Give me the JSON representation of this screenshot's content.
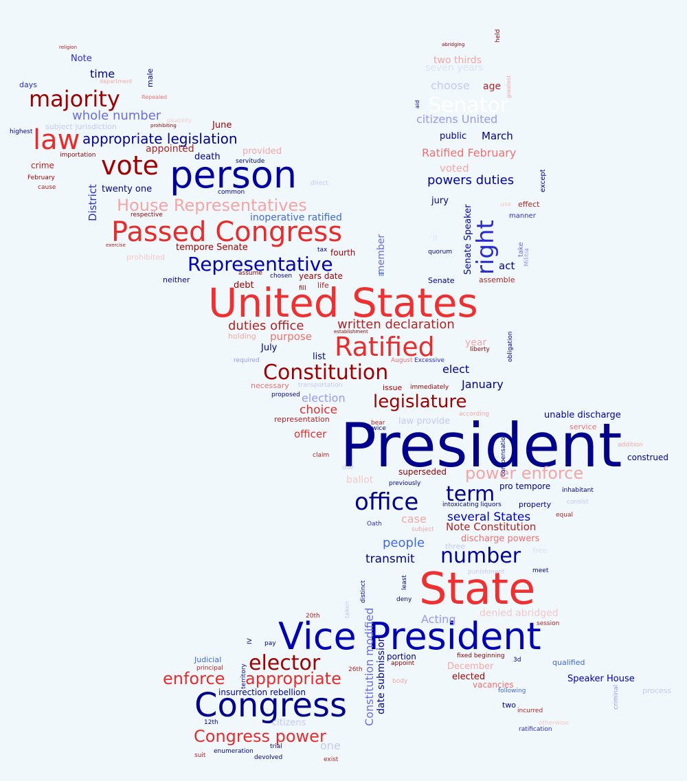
{
  "colors": {
    "background": "#f0f8fc",
    "palette": [
      "#00008b",
      "#0000cd",
      "#4169e1",
      "#9999ee",
      "#c8c8f5",
      "#8b0000",
      "#b22222",
      "#e82c2c",
      "#f07070",
      "#f4a6a6"
    ]
  },
  "words": [
    {
      "text": "President",
      "color": "#00008b"
    },
    {
      "text": "United States",
      "color": "#f03030"
    },
    {
      "text": "State",
      "color": "#f03030"
    },
    {
      "text": "Vice President",
      "color": "#0000b4"
    },
    {
      "text": "person",
      "color": "#0000a0"
    },
    {
      "text": "Congress",
      "color": "#00008b"
    },
    {
      "text": "Passed Congress",
      "color": "#e82c2c"
    },
    {
      "text": "Ratified",
      "color": "#e82c2c"
    },
    {
      "text": "vote",
      "color": "#a00000"
    },
    {
      "text": "law",
      "color": "#e82c2c"
    },
    {
      "text": "majority",
      "color": "#a00000"
    },
    {
      "text": "right",
      "color": "#2a2ad0"
    },
    {
      "text": "Constitution",
      "color": "#a00000"
    },
    {
      "text": "office",
      "color": "#00008b"
    },
    {
      "text": "Representative",
      "color": "#0000b4"
    },
    {
      "text": "legislature",
      "color": "#a00000"
    },
    {
      "text": "number",
      "color": "#0000a0"
    },
    {
      "text": "term",
      "color": "#00008b"
    },
    {
      "text": "elector",
      "color": "#a00000"
    },
    {
      "text": "appropriate",
      "color": "#e82c2c"
    },
    {
      "text": "enforce",
      "color": "#e82c2c"
    },
    {
      "text": "Congress power",
      "color": "#e82c2c"
    },
    {
      "text": "Senator",
      "color": "#ffffff"
    },
    {
      "text": "House Representatives",
      "color": "#f4a6a6"
    },
    {
      "text": "power enforce",
      "color": "#f4a6a6"
    },
    {
      "text": "appropriate legislation",
      "color": "#00008b"
    },
    {
      "text": "whole number",
      "color": "#6c6ce0"
    },
    {
      "text": "written declaration",
      "color": "#b22222"
    },
    {
      "text": "duties office",
      "color": "#b22222"
    },
    {
      "text": "Ratified February",
      "color": "#f07070"
    },
    {
      "text": "powers duties",
      "color": "#0000a0"
    },
    {
      "text": "citizens United",
      "color": "#9999ee"
    },
    {
      "text": "Constitution modified",
      "color": "#6c6ce0"
    },
    {
      "text": "date submission",
      "color": "#00008b"
    },
    {
      "text": "people",
      "color": "#4169e1"
    },
    {
      "text": "transmit",
      "color": "#00008b"
    },
    {
      "text": "several States",
      "color": "#0000b4"
    },
    {
      "text": "Note Constitution",
      "color": "#b22222"
    },
    {
      "text": "choice",
      "color": "#e82c2c"
    },
    {
      "text": "election",
      "color": "#9999ee"
    },
    {
      "text": "officer",
      "color": "#e82c2c"
    },
    {
      "text": "elect",
      "color": "#00008b"
    },
    {
      "text": "January",
      "color": "#00008b"
    },
    {
      "text": "time",
      "color": "#00008b"
    },
    {
      "text": "March",
      "color": "#00008b"
    },
    {
      "text": "choose",
      "color": "#c8c8f5"
    },
    {
      "text": "age",
      "color": "#b22222"
    },
    {
      "text": "two thirds",
      "color": "#f4a6a6"
    },
    {
      "text": "seven years",
      "color": "#e0e0f8"
    },
    {
      "text": "vote2",
      "color": "#f4a6a6"
    },
    {
      "text": "voted",
      "color": "#f4a6a6"
    },
    {
      "text": "public",
      "color": "#00008b"
    },
    {
      "text": "jury",
      "color": "#00008b"
    },
    {
      "text": "Senate Speaker",
      "color": "#0000b4"
    },
    {
      "text": "act",
      "color": "#00008b"
    },
    {
      "text": "effect",
      "color": "#b22222"
    },
    {
      "text": "manner",
      "color": "#2a2ad0"
    },
    {
      "text": "except",
      "color": "#00008b"
    },
    {
      "text": "take",
      "color": "#6c6ce0"
    },
    {
      "text": "Militia",
      "color": "#9999ee"
    },
    {
      "text": "assemble",
      "color": "#b22222"
    },
    {
      "text": "Senate",
      "color": "#00008b"
    },
    {
      "text": "inoperative ratified",
      "color": "#4169e1"
    },
    {
      "text": "tempore Senate",
      "color": "#a00000"
    },
    {
      "text": "fourth",
      "color": "#a00000"
    },
    {
      "text": "member",
      "color": "#6c6ce0"
    },
    {
      "text": "years date",
      "color": "#a00000"
    },
    {
      "text": "debt",
      "color": "#a00000"
    },
    {
      "text": "life",
      "color": "#b22222"
    },
    {
      "text": "III",
      "color": "#4169e1"
    },
    {
      "text": "neither",
      "color": "#00008b"
    },
    {
      "text": "chosen",
      "color": "#00008b"
    },
    {
      "text": "fill",
      "color": "#8b0000"
    },
    {
      "text": "assume",
      "color": "#8b0000"
    },
    {
      "text": "holding",
      "color": "#f4a6a6"
    },
    {
      "text": "purpose",
      "color": "#f07070"
    },
    {
      "text": "July",
      "color": "#00008b"
    },
    {
      "text": "list",
      "color": "#00008b"
    },
    {
      "text": "year",
      "color": "#f4a6a6"
    },
    {
      "text": "liberty",
      "color": "#8b0000"
    },
    {
      "text": "obligation",
      "color": "#00008b"
    },
    {
      "text": "required",
      "color": "#9999ee"
    },
    {
      "text": "establishment",
      "color": "#8b0000"
    },
    {
      "text": "August",
      "color": "#f07070"
    },
    {
      "text": "Excessive",
      "color": "#2a2ad0"
    },
    {
      "text": "necessary",
      "color": "#f07070"
    },
    {
      "text": "transportation",
      "color": "#c8c8f5"
    },
    {
      "text": "issue",
      "color": "#a00000"
    },
    {
      "text": "immediately",
      "color": "#a00000"
    },
    {
      "text": "proposed",
      "color": "#00008b"
    },
    {
      "text": "representation",
      "color": "#b22222"
    },
    {
      "text": "bear",
      "color": "#b22222"
    },
    {
      "text": "twice",
      "color": "#00008b"
    },
    {
      "text": "law provide",
      "color": "#c8c8f5"
    },
    {
      "text": "according",
      "color": "#f4a6a6"
    },
    {
      "text": "unable discharge",
      "color": "#0000a0"
    },
    {
      "text": "service",
      "color": "#f07070"
    },
    {
      "text": "compensation",
      "color": "#00008b"
    },
    {
      "text": "addition",
      "color": "#f4a6a6"
    },
    {
      "text": "construed",
      "color": "#00008b"
    },
    {
      "text": "claim",
      "color": "#b22222"
    },
    {
      "text": "due",
      "color": "#c8c8f5"
    },
    {
      "text": "ballot",
      "color": "#f4c8c8"
    },
    {
      "text": "superseded",
      "color": "#8b0000"
    },
    {
      "text": "previously",
      "color": "#00008b"
    },
    {
      "text": "pro tempore",
      "color": "#00008b"
    },
    {
      "text": "inhabitant",
      "color": "#00008b"
    },
    {
      "text": "intoxicating liquors",
      "color": "#00008b"
    },
    {
      "text": "property",
      "color": "#00008b"
    },
    {
      "text": "consist",
      "color": "#c8c8f5"
    },
    {
      "text": "case",
      "color": "#f4a6a6"
    },
    {
      "text": "equal",
      "color": "#b22222"
    },
    {
      "text": "Oath",
      "color": "#2a2ad0"
    },
    {
      "text": "subject",
      "color": "#f4a6a6"
    },
    {
      "text": "discharge powers",
      "color": "#f07070"
    },
    {
      "text": "three",
      "color": "#c8c8f5"
    },
    {
      "text": "free",
      "color": "#e0e0f8"
    },
    {
      "text": "punishment",
      "color": "#c8c8f5"
    },
    {
      "text": "meet",
      "color": "#00008b"
    },
    {
      "text": "least",
      "color": "#00008b"
    },
    {
      "text": "distinct",
      "color": "#00008b"
    },
    {
      "text": "deny",
      "color": "#00008b"
    },
    {
      "text": "taken",
      "color": "#c8c8f5"
    },
    {
      "text": "denied abridged",
      "color": "#f4c8c8"
    },
    {
      "text": "Acting",
      "color": "#9999ee"
    },
    {
      "text": "session",
      "color": "#b22222"
    },
    {
      "text": "20th",
      "color": "#b22222"
    },
    {
      "text": "IV",
      "color": "#00008b"
    },
    {
      "text": "pay",
      "color": "#00008b"
    },
    {
      "text": "portion",
      "color": "#00008b"
    },
    {
      "text": "appoint",
      "color": "#8b0000"
    },
    {
      "text": "fixed beginning",
      "color": "#8b0000"
    },
    {
      "text": "3d",
      "color": "#00008b"
    },
    {
      "text": "qualified",
      "color": "#4169e1"
    },
    {
      "text": "December",
      "color": "#f4a6a6"
    },
    {
      "text": "elected",
      "color": "#a00000"
    },
    {
      "text": "vacancies",
      "color": "#f07070"
    },
    {
      "text": "Speaker House",
      "color": "#0000b4"
    },
    {
      "text": "Judicial",
      "color": "#4169e1"
    },
    {
      "text": "principal",
      "color": "#b22222"
    },
    {
      "text": "territory",
      "color": "#00008b"
    },
    {
      "text": "26th",
      "color": "#b22222"
    },
    {
      "text": "body",
      "color": "#f4a6a6"
    },
    {
      "text": "following",
      "color": "#4169e1"
    },
    {
      "text": "process",
      "color": "#c8c8f5"
    },
    {
      "text": "criminal",
      "color": "#9999ee"
    },
    {
      "text": "insurrection rebellion",
      "color": "#00008b"
    },
    {
      "text": "two",
      "color": "#00008b"
    },
    {
      "text": "incurred",
      "color": "#b22222"
    },
    {
      "text": "12th",
      "color": "#00008b"
    },
    {
      "text": "citizens",
      "color": "#c8c8f5"
    },
    {
      "text": "one",
      "color": "#c8c8f5"
    },
    {
      "text": "trial",
      "color": "#00008b"
    },
    {
      "text": "suit",
      "color": "#b22222"
    },
    {
      "text": "enumeration",
      "color": "#00008b"
    },
    {
      "text": "devolved",
      "color": "#00008b"
    },
    {
      "text": "exist",
      "color": "#b22222"
    },
    {
      "text": "ratification",
      "color": "#2a2ad0"
    },
    {
      "text": "otherwise",
      "color": "#f4c8c8"
    },
    {
      "text": "religion",
      "color": "#b22222"
    },
    {
      "text": "Note",
      "color": "#2a2ad0"
    },
    {
      "text": "days",
      "color": "#2a2ad0"
    },
    {
      "text": "male",
      "color": "#00008b"
    },
    {
      "text": "department",
      "color": "#f4a6a6"
    },
    {
      "text": "Repealed",
      "color": "#f07070"
    },
    {
      "text": "disability",
      "color": "#f4c8c8"
    },
    {
      "text": "prohibiting",
      "color": "#8b0000"
    },
    {
      "text": "subject jurisdiction",
      "color": "#c8c8f5"
    },
    {
      "text": "highest",
      "color": "#00008b"
    },
    {
      "text": "June",
      "color": "#a00000"
    },
    {
      "text": "appointed",
      "color": "#b22222"
    },
    {
      "text": "provided",
      "color": "#f4a6a6"
    },
    {
      "text": "importation",
      "color": "#8b0000"
    },
    {
      "text": "death",
      "color": "#00008b"
    },
    {
      "text": "servitude",
      "color": "#00008b"
    },
    {
      "text": "crime",
      "color": "#b22222"
    },
    {
      "text": "February",
      "color": "#a00000"
    },
    {
      "text": "cause",
      "color": "#b22222"
    },
    {
      "text": "District",
      "color": "#2a2ad0"
    },
    {
      "text": "twenty one",
      "color": "#00008b"
    },
    {
      "text": "common",
      "color": "#00008b"
    },
    {
      "text": "direct",
      "color": "#c8c8f5"
    },
    {
      "text": "respective",
      "color": "#8b0000"
    },
    {
      "text": "exercise",
      "color": "#b22222"
    },
    {
      "text": "prohibited",
      "color": "#f4c8c8"
    },
    {
      "text": "tax",
      "color": "#00008b"
    },
    {
      "text": "quorum",
      "color": "#00008b"
    },
    {
      "text": "II",
      "color": "#e0e0f8"
    },
    {
      "text": "abridging",
      "color": "#8b0000"
    },
    {
      "text": "held",
      "color": "#8b0000"
    },
    {
      "text": "greatest",
      "color": "#f4a6a6"
    },
    {
      "text": "aid",
      "color": "#00008b"
    },
    {
      "text": "use",
      "color": "#f4c8c8"
    },
    {
      "text": "effect2",
      "color": "#f4c8c8"
    }
  ]
}
